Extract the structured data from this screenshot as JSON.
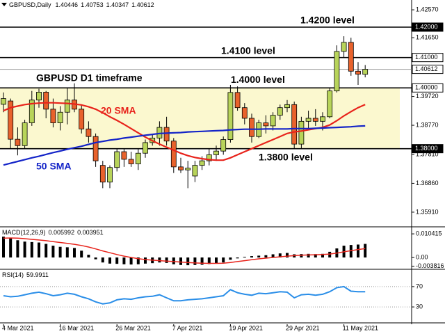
{
  "chart_data": [
    {
      "type": "candlestick",
      "title": "GBPUSD,Daily",
      "categories": [
        "4 Mar 2021",
        null,
        null,
        null,
        null,
        null,
        null,
        null,
        "16 Mar 2021",
        null,
        null,
        null,
        null,
        null,
        null,
        null,
        "26 Mar 2021",
        null,
        null,
        null,
        null,
        null,
        null,
        null,
        "7 Apr 2021",
        null,
        null,
        null,
        null,
        null,
        null,
        null,
        "19 Apr 2021",
        null,
        null,
        null,
        null,
        null,
        null,
        null,
        "29 Apr 2021",
        null,
        null,
        null,
        null,
        null,
        null,
        null,
        "11 May 2021",
        null,
        null,
        null
      ],
      "open": [
        1.3946,
        1.3957,
        1.3831,
        1.381,
        1.3885,
        1.396,
        1.3986,
        1.393,
        1.3885,
        1.392,
        1.396,
        1.393,
        1.3865,
        1.384,
        1.3745,
        1.369,
        1.3738,
        1.379,
        1.3765,
        1.375,
        1.3785,
        1.382,
        1.3835,
        1.387,
        1.3825,
        1.374,
        1.373,
        1.371,
        1.3745,
        1.376,
        1.378,
        1.3792,
        1.383,
        1.3985,
        1.3935,
        1.39,
        1.384,
        1.3885,
        1.3875,
        1.391,
        1.3935,
        1.3945,
        1.3815,
        1.389,
        1.39,
        1.389,
        1.3905,
        1.399,
        1.412,
        1.415,
        1.4055,
        1.40446
      ],
      "high": [
        1.3985,
        1.3965,
        1.387,
        1.3895,
        1.399,
        1.3997,
        1.399,
        1.3965,
        1.394,
        1.4,
        1.4015,
        1.3945,
        1.389,
        1.385,
        1.376,
        1.3745,
        1.38,
        1.38,
        1.379,
        1.38,
        1.383,
        1.3845,
        1.389,
        1.3905,
        1.3835,
        1.377,
        1.376,
        1.376,
        1.3775,
        1.38,
        1.381,
        1.384,
        1.401,
        1.4005,
        1.395,
        1.3915,
        1.3895,
        1.391,
        1.392,
        1.3945,
        1.396,
        1.3955,
        1.3905,
        1.3925,
        1.393,
        1.392,
        1.4,
        1.414,
        1.417,
        1.4165,
        1.4085,
        1.40753
      ],
      "low": [
        1.392,
        1.38,
        1.3778,
        1.38,
        1.3875,
        1.3935,
        1.39,
        1.387,
        1.386,
        1.388,
        1.392,
        1.385,
        1.382,
        1.374,
        1.367,
        1.367,
        1.3725,
        1.374,
        1.374,
        1.373,
        1.377,
        1.381,
        1.381,
        1.381,
        1.372,
        1.372,
        1.367,
        1.369,
        1.373,
        1.3745,
        1.376,
        1.378,
        1.382,
        1.3925,
        1.388,
        1.382,
        1.3835,
        1.385,
        1.386,
        1.3895,
        1.392,
        1.38,
        1.38,
        1.3865,
        1.3875,
        1.386,
        1.39,
        1.3985,
        1.41,
        1.404,
        1.401,
        1.40347
      ],
      "close": [
        1.3965,
        1.3831,
        1.381,
        1.3885,
        1.396,
        1.3986,
        1.393,
        1.3885,
        1.392,
        1.396,
        1.393,
        1.3865,
        1.384,
        1.376,
        1.369,
        1.3738,
        1.379,
        1.3765,
        1.375,
        1.3785,
        1.382,
        1.3835,
        1.387,
        1.3825,
        1.374,
        1.373,
        1.3736,
        1.3745,
        1.376,
        1.378,
        1.3792,
        1.383,
        1.3985,
        1.3935,
        1.39,
        1.384,
        1.3885,
        1.3875,
        1.391,
        1.3935,
        1.3945,
        1.3815,
        1.389,
        1.39,
        1.389,
        1.3905,
        1.399,
        1.412,
        1.415,
        1.4055,
        1.4045,
        1.40612
      ],
      "up_color": "#b8d45a",
      "down_color": "#e8622c",
      "series": [
        {
          "name": "20 SMA",
          "color": "#e8231b",
          "values": [
            1.3925,
            1.3935,
            1.394,
            1.3945,
            1.3948,
            1.395,
            1.3951,
            1.3951,
            1.395,
            1.3949,
            1.3947,
            1.3944,
            1.3938,
            1.393,
            1.3918,
            1.3905,
            1.3893,
            1.388,
            1.3866,
            1.3852,
            1.3838,
            1.3826,
            1.3815,
            1.3805,
            1.3795,
            1.3785,
            1.3777,
            1.3771,
            1.3767,
            1.3764,
            1.3762,
            1.3762,
            1.377,
            1.378,
            1.379,
            1.38,
            1.381,
            1.382,
            1.383,
            1.384,
            1.385,
            1.3855,
            1.3858,
            1.3862,
            1.3866,
            1.387,
            1.3878,
            1.3892,
            1.3908,
            1.3922,
            1.3935,
            1.3945
          ]
        },
        {
          "name": "50 SMA",
          "color": "#1424c8",
          "values": [
            1.3746,
            1.3752,
            1.3758,
            1.3764,
            1.377,
            1.3775,
            1.3781,
            1.3787,
            1.3792,
            1.3798,
            1.3803,
            1.3808,
            1.3814,
            1.382,
            1.3824,
            1.3828,
            1.3831,
            1.3835,
            1.3838,
            1.3841,
            1.3844,
            1.3847,
            1.385,
            1.3851,
            1.3852,
            1.3853,
            1.3855,
            1.3856,
            1.3857,
            1.3858,
            1.3859,
            1.386,
            1.3862,
            1.3863,
            1.3864,
            1.3864,
            1.3864,
            1.3865,
            1.3865,
            1.3865,
            1.3865,
            1.3866,
            1.3866,
            1.3866,
            1.3867,
            1.3868,
            1.3869,
            1.387,
            1.3871,
            1.3872,
            1.3874,
            1.3875
          ]
        }
      ],
      "levels": [
        {
          "value": 1.42,
          "label": "1.42000",
          "text": "1.4200 level"
        },
        {
          "value": 1.41,
          "label": "1.41000",
          "text": "1.4100 level"
        },
        {
          "value": 1.4,
          "label": "1.40000",
          "text": "1.4000 level"
        },
        {
          "value": 1.38,
          "label": "1.38000",
          "text": "1.3800 level"
        }
      ],
      "annotations": [
        "GBPUSD D1 timeframe"
      ],
      "ylim": [
        1.3545,
        1.4287
      ],
      "yticks": [
        {
          "value": 1.4257,
          "label": "1.42570"
        },
        {
          "value": 1.4165,
          "label": "1.41650"
        },
        {
          "value": 1.3972,
          "label": "1.39720"
        },
        {
          "value": 1.3877,
          "label": "1.38770"
        },
        {
          "value": 1.3781,
          "label": "1.37810"
        },
        {
          "value": 1.3686,
          "label": "1.36860"
        },
        {
          "value": 1.3591,
          "label": "1.35910"
        }
      ]
    },
    {
      "type": "macd",
      "title": "MACD(12,26,9)",
      "values": [
        0.0092,
        0.0085,
        0.0076,
        0.007,
        0.0068,
        0.0066,
        0.006,
        0.0052,
        0.0047,
        0.0045,
        0.0042,
        0.003,
        0.0012,
        -0.0008,
        -0.0022,
        -0.0027,
        -0.0028,
        -0.003,
        -0.0031,
        -0.003,
        -0.0027,
        -0.0025,
        -0.0022,
        -0.0024,
        -0.003,
        -0.0033,
        -0.0034,
        -0.0033,
        -0.0032,
        -0.0029,
        -0.0026,
        -0.0022,
        -0.001,
        -0.0004,
        0.0003,
        0.0006,
        0.0008,
        0.001,
        0.0014,
        0.0018,
        0.002,
        0.0014,
        0.0015,
        0.0016,
        0.0015,
        0.0016,
        0.0025,
        0.004,
        0.0052,
        0.0055,
        0.0057,
        0.005992
      ],
      "color": "#000000",
      "signal": [
        0.0085,
        0.0086,
        0.0085,
        0.0083,
        0.008,
        0.0077,
        0.0074,
        0.007,
        0.0066,
        0.0062,
        0.0058,
        0.0053,
        0.0046,
        0.0038,
        0.0029,
        0.0021,
        0.0013,
        0.0006,
        0.0,
        -0.0005,
        -0.0009,
        -0.0012,
        -0.0014,
        -0.0016,
        -0.0018,
        -0.002,
        -0.0022,
        -0.0024,
        -0.0025,
        -0.0026,
        -0.0026,
        -0.0025,
        -0.0022,
        -0.0018,
        -0.0014,
        -0.001,
        -0.0006,
        -0.0003,
        0.0,
        0.0003,
        0.0006,
        0.0008,
        0.001,
        0.0011,
        0.0012,
        0.0013,
        0.0015,
        0.0019,
        0.0025,
        0.003,
        0.0035,
        0.003951
      ],
      "signal_color": "#e8231b",
      "ylim": [
        -0.0049,
        0.0129
      ],
      "yticks": [
        0.010415,
        {
          "value": 0,
          "label": "0.00"
        },
        -0.003816
      ]
    },
    {
      "type": "line",
      "title": "RSI(14)",
      "values": [
        52,
        50,
        51,
        54,
        57,
        59,
        56,
        52,
        54,
        57,
        55,
        50,
        46,
        40,
        36,
        38,
        44,
        46,
        45,
        48,
        50,
        51,
        54,
        48,
        42,
        42,
        44,
        45,
        46,
        48,
        50,
        52,
        64,
        58,
        55,
        53,
        57,
        56,
        58,
        60,
        59,
        48,
        54,
        55,
        53,
        55,
        60,
        68,
        70,
        61,
        60,
        59.9911
      ],
      "color": "#2a8ee8",
      "ylim": [
        0,
        100
      ],
      "yticks": [
        70,
        30
      ]
    }
  ]
}
